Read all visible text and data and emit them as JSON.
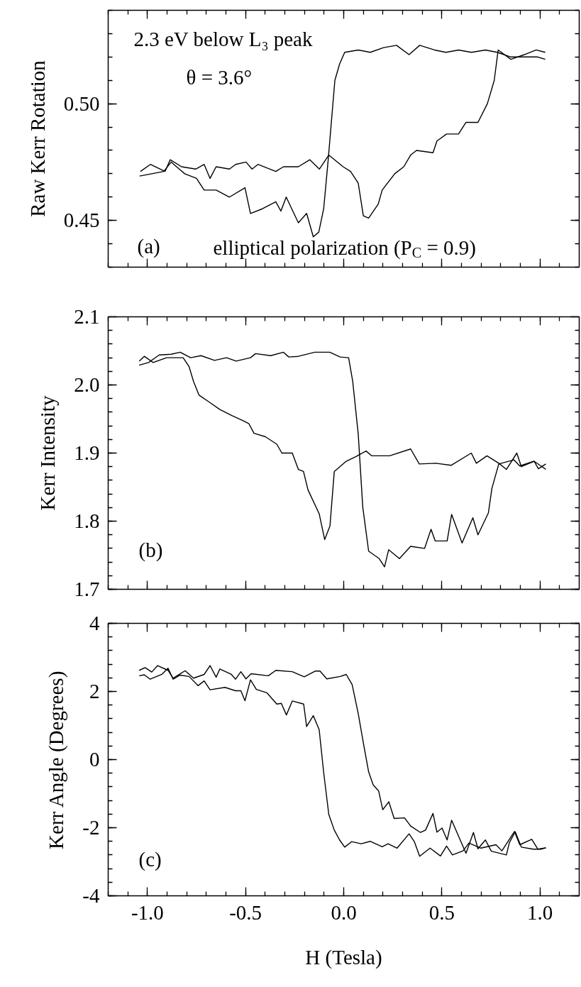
{
  "chart_data": [
    {
      "type": "line",
      "ylabel": "Raw Kerr Rotation",
      "xlim": [
        -1.2,
        1.2
      ],
      "ylim": [
        0.43,
        0.54
      ],
      "xticks": [
        -1,
        -0.5,
        0,
        0.5,
        1
      ],
      "yticks": [
        0.45,
        {
          "value": 0.5,
          "label": "0.50"
        }
      ],
      "tick_labels": "y",
      "grid": false,
      "line_style": "solid",
      "annotations": [
        "2.3 eV below L₃ peak",
        "θ = 3.6°",
        "(a)",
        "elliptical polarization (P$_{C}$ = 0.9)"
      ],
      "series": [
        {
          "color": "#000000",
          "x": [
            -1.04,
            -0.978,
            -0.917,
            -0.879,
            -0.81,
            -0.75,
            -0.711,
            -0.65,
            -0.582,
            -0.503,
            -0.475,
            -0.414,
            -0.346,
            -0.32,
            -0.293,
            -0.231,
            -0.189,
            -0.155,
            -0.127,
            -0.102,
            -0.079,
            -0.045,
            -0.021,
            0.005,
            0.074,
            0.135,
            0.203,
            0.269,
            0.333,
            0.387,
            0.463,
            0.521,
            0.585,
            0.651,
            0.722,
            0.783,
            0.852,
            0.92,
            0.989,
            1.027
          ],
          "values": [
            0.469,
            0.47,
            0.471,
            0.475,
            0.47,
            0.468,
            0.463,
            0.463,
            0.46,
            0.464,
            0.453,
            0.455,
            0.458,
            0.454,
            0.46,
            0.449,
            0.453,
            0.443,
            0.445,
            0.455,
            0.476,
            0.51,
            0.517,
            0.522,
            0.523,
            0.522,
            0.524,
            0.525,
            0.521,
            0.525,
            0.523,
            0.522,
            0.523,
            0.522,
            0.523,
            0.522,
            0.52,
            0.52,
            0.52,
            0.519
          ]
        },
        {
          "color": "#000000",
          "x": [
            -1.036,
            -0.985,
            -0.91,
            -0.884,
            -0.826,
            -0.754,
            -0.711,
            -0.681,
            -0.65,
            -0.582,
            -0.551,
            -0.498,
            -0.467,
            -0.437,
            -0.346,
            -0.307,
            -0.231,
            -0.173,
            -0.124,
            -0.076,
            -0.003,
            0.035,
            0.074,
            0.1,
            0.127,
            0.176,
            0.196,
            0.26,
            0.306,
            0.341,
            0.371,
            0.455,
            0.475,
            0.524,
            0.585,
            0.623,
            0.684,
            0.732,
            0.767,
            0.787,
            0.852,
            0.92,
            0.981,
            1.027
          ],
          "values": [
            0.471,
            0.474,
            0.471,
            0.476,
            0.473,
            0.472,
            0.474,
            0.468,
            0.473,
            0.472,
            0.474,
            0.475,
            0.472,
            0.474,
            0.471,
            0.473,
            0.473,
            0.476,
            0.472,
            0.478,
            0.473,
            0.471,
            0.466,
            0.452,
            0.451,
            0.457,
            0.463,
            0.47,
            0.473,
            0.478,
            0.48,
            0.479,
            0.484,
            0.487,
            0.487,
            0.492,
            0.492,
            0.5,
            0.51,
            0.523,
            0.519,
            0.521,
            0.523,
            0.522
          ]
        }
      ]
    },
    {
      "type": "line",
      "ylabel": "Kerr Intensity",
      "xlim": [
        -1.2,
        1.2
      ],
      "ylim": [
        1.7,
        2.1
      ],
      "xticks": [
        -1,
        -0.5,
        0,
        0.5,
        1
      ],
      "yticks": [
        1.7,
        1.8,
        1.9,
        {
          "value": 2,
          "label": "2.0"
        },
        2.1
      ],
      "tick_labels": "y",
      "grid": false,
      "line_style": "solid",
      "annotations": [
        "(b)"
      ],
      "series": [
        {
          "color": "#000000",
          "x": [
            -1.042,
            -0.994,
            -0.94,
            -0.879,
            -0.833,
            -0.78,
            -0.727,
            -0.658,
            -0.597,
            -0.548,
            -0.475,
            -0.449,
            -0.372,
            -0.307,
            -0.28,
            -0.231,
            -0.147,
            -0.071,
            -0.018,
            0.025,
            0.046,
            0.074,
            0.097,
            0.127,
            0.181,
            0.208,
            0.229,
            0.284,
            0.341,
            0.412,
            0.445,
            0.466,
            0.527,
            0.55,
            0.603,
            0.658,
            0.684,
            0.737,
            0.755,
            0.79,
            0.867,
            0.897,
            0.97,
            0.992,
            1.03
          ],
          "values": [
            2.029,
            2.033,
            2.044,
            2.045,
            2.048,
            2.04,
            2.043,
            2.036,
            2.04,
            2.035,
            2.04,
            2.046,
            2.043,
            2.048,
            2.041,
            2.042,
            2.048,
            2.048,
            2.041,
            2.04,
            2.005,
            1.928,
            1.821,
            1.756,
            1.745,
            1.733,
            1.758,
            1.745,
            1.763,
            1.76,
            1.788,
            1.771,
            1.771,
            1.81,
            1.768,
            1.805,
            1.78,
            1.812,
            1.848,
            1.884,
            1.89,
            1.881,
            1.888,
            1.877,
            1.884
          ]
        },
        {
          "color": "#000000",
          "x": [
            -1.042,
            -1.016,
            -0.971,
            -0.902,
            -0.818,
            -0.788,
            -0.765,
            -0.737,
            -0.686,
            -0.631,
            -0.57,
            -0.509,
            -0.483,
            -0.457,
            -0.399,
            -0.341,
            -0.315,
            -0.262,
            -0.231,
            -0.205,
            -0.182,
            -0.125,
            -0.097,
            -0.07,
            -0.048,
            0.013,
            0.063,
            0.114,
            0.142,
            0.234,
            0.341,
            0.385,
            0.47,
            0.547,
            0.65,
            0.676,
            0.73,
            0.79,
            0.829,
            0.882,
            0.905,
            0.97,
            1.03
          ],
          "values": [
            2.035,
            2.042,
            2.033,
            2.04,
            2.04,
            2.027,
            2.005,
            1.985,
            1.975,
            1.964,
            1.955,
            1.947,
            1.943,
            1.929,
            1.924,
            1.913,
            1.9,
            1.9,
            1.876,
            1.873,
            1.846,
            1.811,
            1.773,
            1.793,
            1.873,
            1.888,
            1.895,
            1.903,
            1.896,
            1.896,
            1.906,
            1.884,
            1.885,
            1.882,
            1.9,
            1.885,
            1.896,
            1.885,
            1.876,
            1.9,
            1.88,
            1.888,
            1.876
          ]
        }
      ]
    },
    {
      "type": "line",
      "xlabel": "H (Tesla)",
      "ylabel": "Kerr Angle (Degrees)",
      "xlim": [
        -1.2,
        1.2
      ],
      "ylim": [
        -4,
        4
      ],
      "xticks": [
        {
          "value": -1,
          "label": "-1.0"
        },
        {
          "value": -0.5,
          "label": "-0.5"
        },
        {
          "value": 0,
          "label": "0.0"
        },
        {
          "value": 0.5,
          "label": "0.5"
        },
        {
          "value": 1,
          "label": "1.0"
        }
      ],
      "yticks": [
        -4,
        -2,
        0,
        2,
        4
      ],
      "grid": false,
      "line_style": "solid",
      "annotations": [
        "(c)"
      ],
      "series": [
        {
          "color": "#000000",
          "x": [
            -1.042,
            -1.012,
            -0.978,
            -0.948,
            -0.895,
            -0.869,
            -0.808,
            -0.765,
            -0.711,
            -0.681,
            -0.65,
            -0.631,
            -0.574,
            -0.551,
            -0.524,
            -0.498,
            -0.472,
            -0.384,
            -0.346,
            -0.262,
            -0.201,
            -0.144,
            -0.121,
            -0.086,
            -0.018,
            0.013,
            0.043,
            0.074,
            0.101,
            0.127,
            0.15,
            0.178,
            0.199,
            0.23,
            0.257,
            0.31,
            0.341,
            0.391,
            0.417,
            0.455,
            0.475,
            0.501,
            0.527,
            0.55,
            0.623,
            0.661,
            0.684,
            0.722,
            0.752,
            0.829,
            0.844,
            0.874,
            0.905,
            0.966,
            1.004,
            1.03
          ],
          "values": [
            2.62,
            2.7,
            2.57,
            2.76,
            2.62,
            2.39,
            2.61,
            2.39,
            2.5,
            2.76,
            2.42,
            2.66,
            2.51,
            2.36,
            2.58,
            2.37,
            2.52,
            2.46,
            2.62,
            2.58,
            2.43,
            2.6,
            2.6,
            2.37,
            2.44,
            2.5,
            2.2,
            1.35,
            0.46,
            -0.36,
            -0.74,
            -0.92,
            -1.47,
            -1.24,
            -1.73,
            -1.71,
            -1.95,
            -2.14,
            -2.07,
            -1.58,
            -2.13,
            -2.01,
            -2.36,
            -1.78,
            -2.75,
            -2.14,
            -2.62,
            -2.36,
            -2.69,
            -2.8,
            -2.44,
            -2.12,
            -2.57,
            -2.63,
            -2.63,
            -2.59
          ]
        },
        {
          "color": "#000000",
          "x": [
            -1.042,
            -1.016,
            -0.986,
            -0.925,
            -0.895,
            -0.869,
            -0.834,
            -0.788,
            -0.742,
            -0.711,
            -0.681,
            -0.605,
            -0.551,
            -0.524,
            -0.503,
            -0.475,
            -0.445,
            -0.391,
            -0.341,
            -0.318,
            -0.292,
            -0.262,
            -0.204,
            -0.189,
            -0.155,
            -0.125,
            -0.102,
            -0.076,
            -0.048,
            -0.021,
            0.005,
            0.04,
            0.089,
            0.135,
            0.196,
            0.226,
            0.272,
            0.333,
            0.36,
            0.387,
            0.44,
            0.493,
            0.524,
            0.554,
            0.608,
            0.638,
            0.699,
            0.776,
            0.806,
            0.87,
            0.897,
            0.958,
            0.989,
            1.03
          ],
          "values": [
            2.46,
            2.49,
            2.36,
            2.51,
            2.68,
            2.36,
            2.48,
            2.44,
            2.17,
            2.31,
            2.05,
            2.12,
            2.02,
            2.02,
            1.73,
            2.34,
            2.06,
            1.96,
            1.63,
            1.65,
            1.31,
            1.72,
            1.63,
            0.97,
            1.29,
            0.88,
            -0.38,
            -1.61,
            -2.07,
            -2.36,
            -2.57,
            -2.41,
            -2.47,
            -2.4,
            -2.56,
            -2.47,
            -2.6,
            -2.18,
            -2.41,
            -2.84,
            -2.6,
            -2.83,
            -2.54,
            -2.8,
            -2.68,
            -2.45,
            -2.6,
            -2.5,
            -2.68,
            -2.11,
            -2.5,
            -2.34,
            -2.63,
            -2.59
          ]
        }
      ]
    }
  ]
}
